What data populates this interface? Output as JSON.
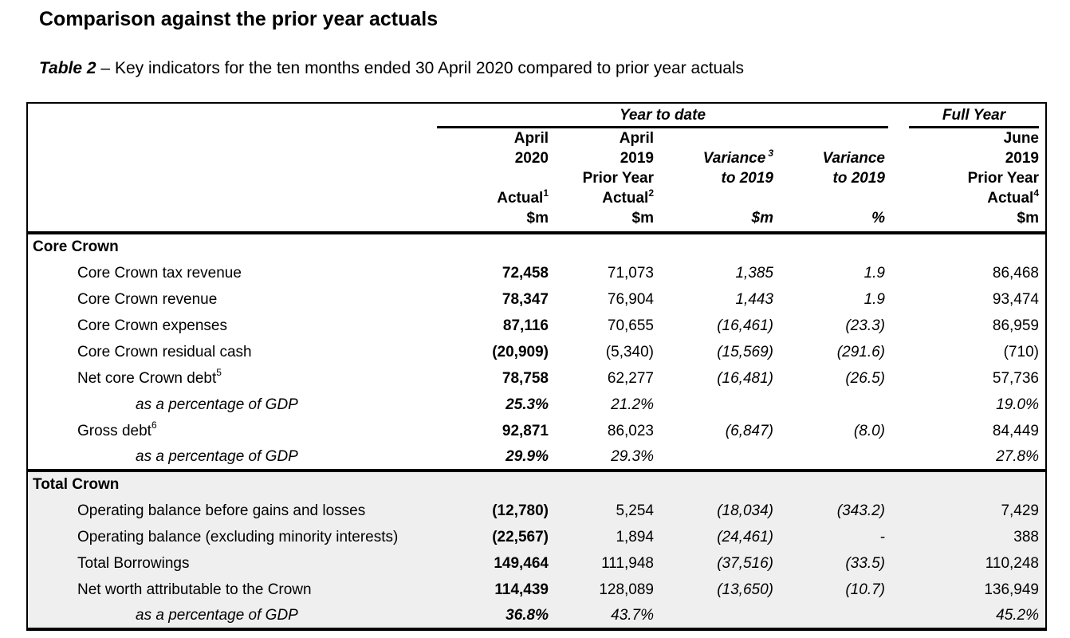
{
  "page": {
    "title": "Comparison against the prior year actuals",
    "subtitle_ref": "Table 2",
    "subtitle_rest": " – Key indicators for the ten months ended 30 April 2020 compared to prior year actuals"
  },
  "colors": {
    "section_bg": "#efefef",
    "text": "#000000",
    "rule": "#000000"
  },
  "table": {
    "spanners": {
      "ytd": "Year to date",
      "full_year": "Full Year"
    },
    "columns": {
      "c1": {
        "l1": "April",
        "l2": "2020",
        "l3": "",
        "l4": "Actual",
        "l4_sup": "1",
        "l5": "$m"
      },
      "c2": {
        "l1": "April",
        "l2": "2019",
        "l3": "Prior Year",
        "l4": "Actual",
        "l4_sup": "2",
        "l5": "$m"
      },
      "c3": {
        "l1": "",
        "l2": "Variance",
        "l2_sup": "3",
        "l3": "to 2019",
        "l4": "",
        "l5": "$m"
      },
      "c4": {
        "l1": "",
        "l2": "Variance",
        "l3": "to 2019",
        "l4": "",
        "l5": "%"
      },
      "c5": {
        "l1": "June",
        "l2": "2019",
        "l3": "Prior Year",
        "l4": "Actual",
        "l4_sup": "4",
        "l5": "$m"
      }
    },
    "rows": [
      {
        "type": "section",
        "label": "Core Crown"
      },
      {
        "type": "item",
        "label": "Core Crown tax revenue",
        "v1": "72,458",
        "v2": "71,073",
        "v3": "1,385",
        "v4": "1.9",
        "v5": "86,468"
      },
      {
        "type": "item",
        "label": "Core Crown revenue",
        "v1": "78,347",
        "v2": "76,904",
        "v3": "1,443",
        "v4": "1.9",
        "v5": "93,474"
      },
      {
        "type": "item",
        "label": "Core Crown expenses",
        "v1": "87,116",
        "v2": "70,655",
        "v3": "(16,461)",
        "v4": "(23.3)",
        "v5": "86,959"
      },
      {
        "type": "item",
        "label": "Core Crown residual cash",
        "v1": "(20,909)",
        "v2": "(5,340)",
        "v3": "(15,569)",
        "v4": "(291.6)",
        "v5": "(710)"
      },
      {
        "type": "item",
        "label": "Net core Crown debt",
        "sup": "5",
        "v1": "78,758",
        "v2": "62,277",
        "v3": "(16,481)",
        "v4": "(26.5)",
        "v5": "57,736"
      },
      {
        "type": "gdp",
        "label": "as a percentage of GDP",
        "v1": "25.3%",
        "v2": "21.2%",
        "v3": "",
        "v4": "",
        "v5": "19.0%"
      },
      {
        "type": "item",
        "label": "Gross debt",
        "sup": "6",
        "v1": "92,871",
        "v2": "86,023",
        "v3": "(6,847)",
        "v4": "(8.0)",
        "v5": "84,449"
      },
      {
        "type": "gdp",
        "label": "as a percentage of GDP",
        "v1": "29.9%",
        "v2": "29.3%",
        "v3": "",
        "v4": "",
        "v5": "27.8%"
      },
      {
        "type": "section",
        "label": "Total Crown"
      },
      {
        "type": "item",
        "label": "Operating balance before gains and losses",
        "v1": "(12,780)",
        "v2": "5,254",
        "v3": "(18,034)",
        "v4": "(343.2)",
        "v5": "7,429"
      },
      {
        "type": "item",
        "label": "Operating balance (excluding minority interests)",
        "v1": "(22,567)",
        "v2": "1,894",
        "v3": "(24,461)",
        "v4": "-",
        "v5": "388"
      },
      {
        "type": "item",
        "label": "Total Borrowings",
        "v1": "149,464",
        "v2": "111,948",
        "v3": "(37,516)",
        "v4": "(33.5)",
        "v5": "110,248"
      },
      {
        "type": "item",
        "label": "Net worth attributable to the Crown",
        "v1": "114,439",
        "v2": "128,089",
        "v3": "(13,650)",
        "v4": "(10.7)",
        "v5": "136,949"
      },
      {
        "type": "gdp",
        "label": "as a percentage of GDP",
        "v1": "36.8%",
        "v2": "43.7%",
        "v3": "",
        "v4": "",
        "v5": "45.2%"
      }
    ]
  }
}
